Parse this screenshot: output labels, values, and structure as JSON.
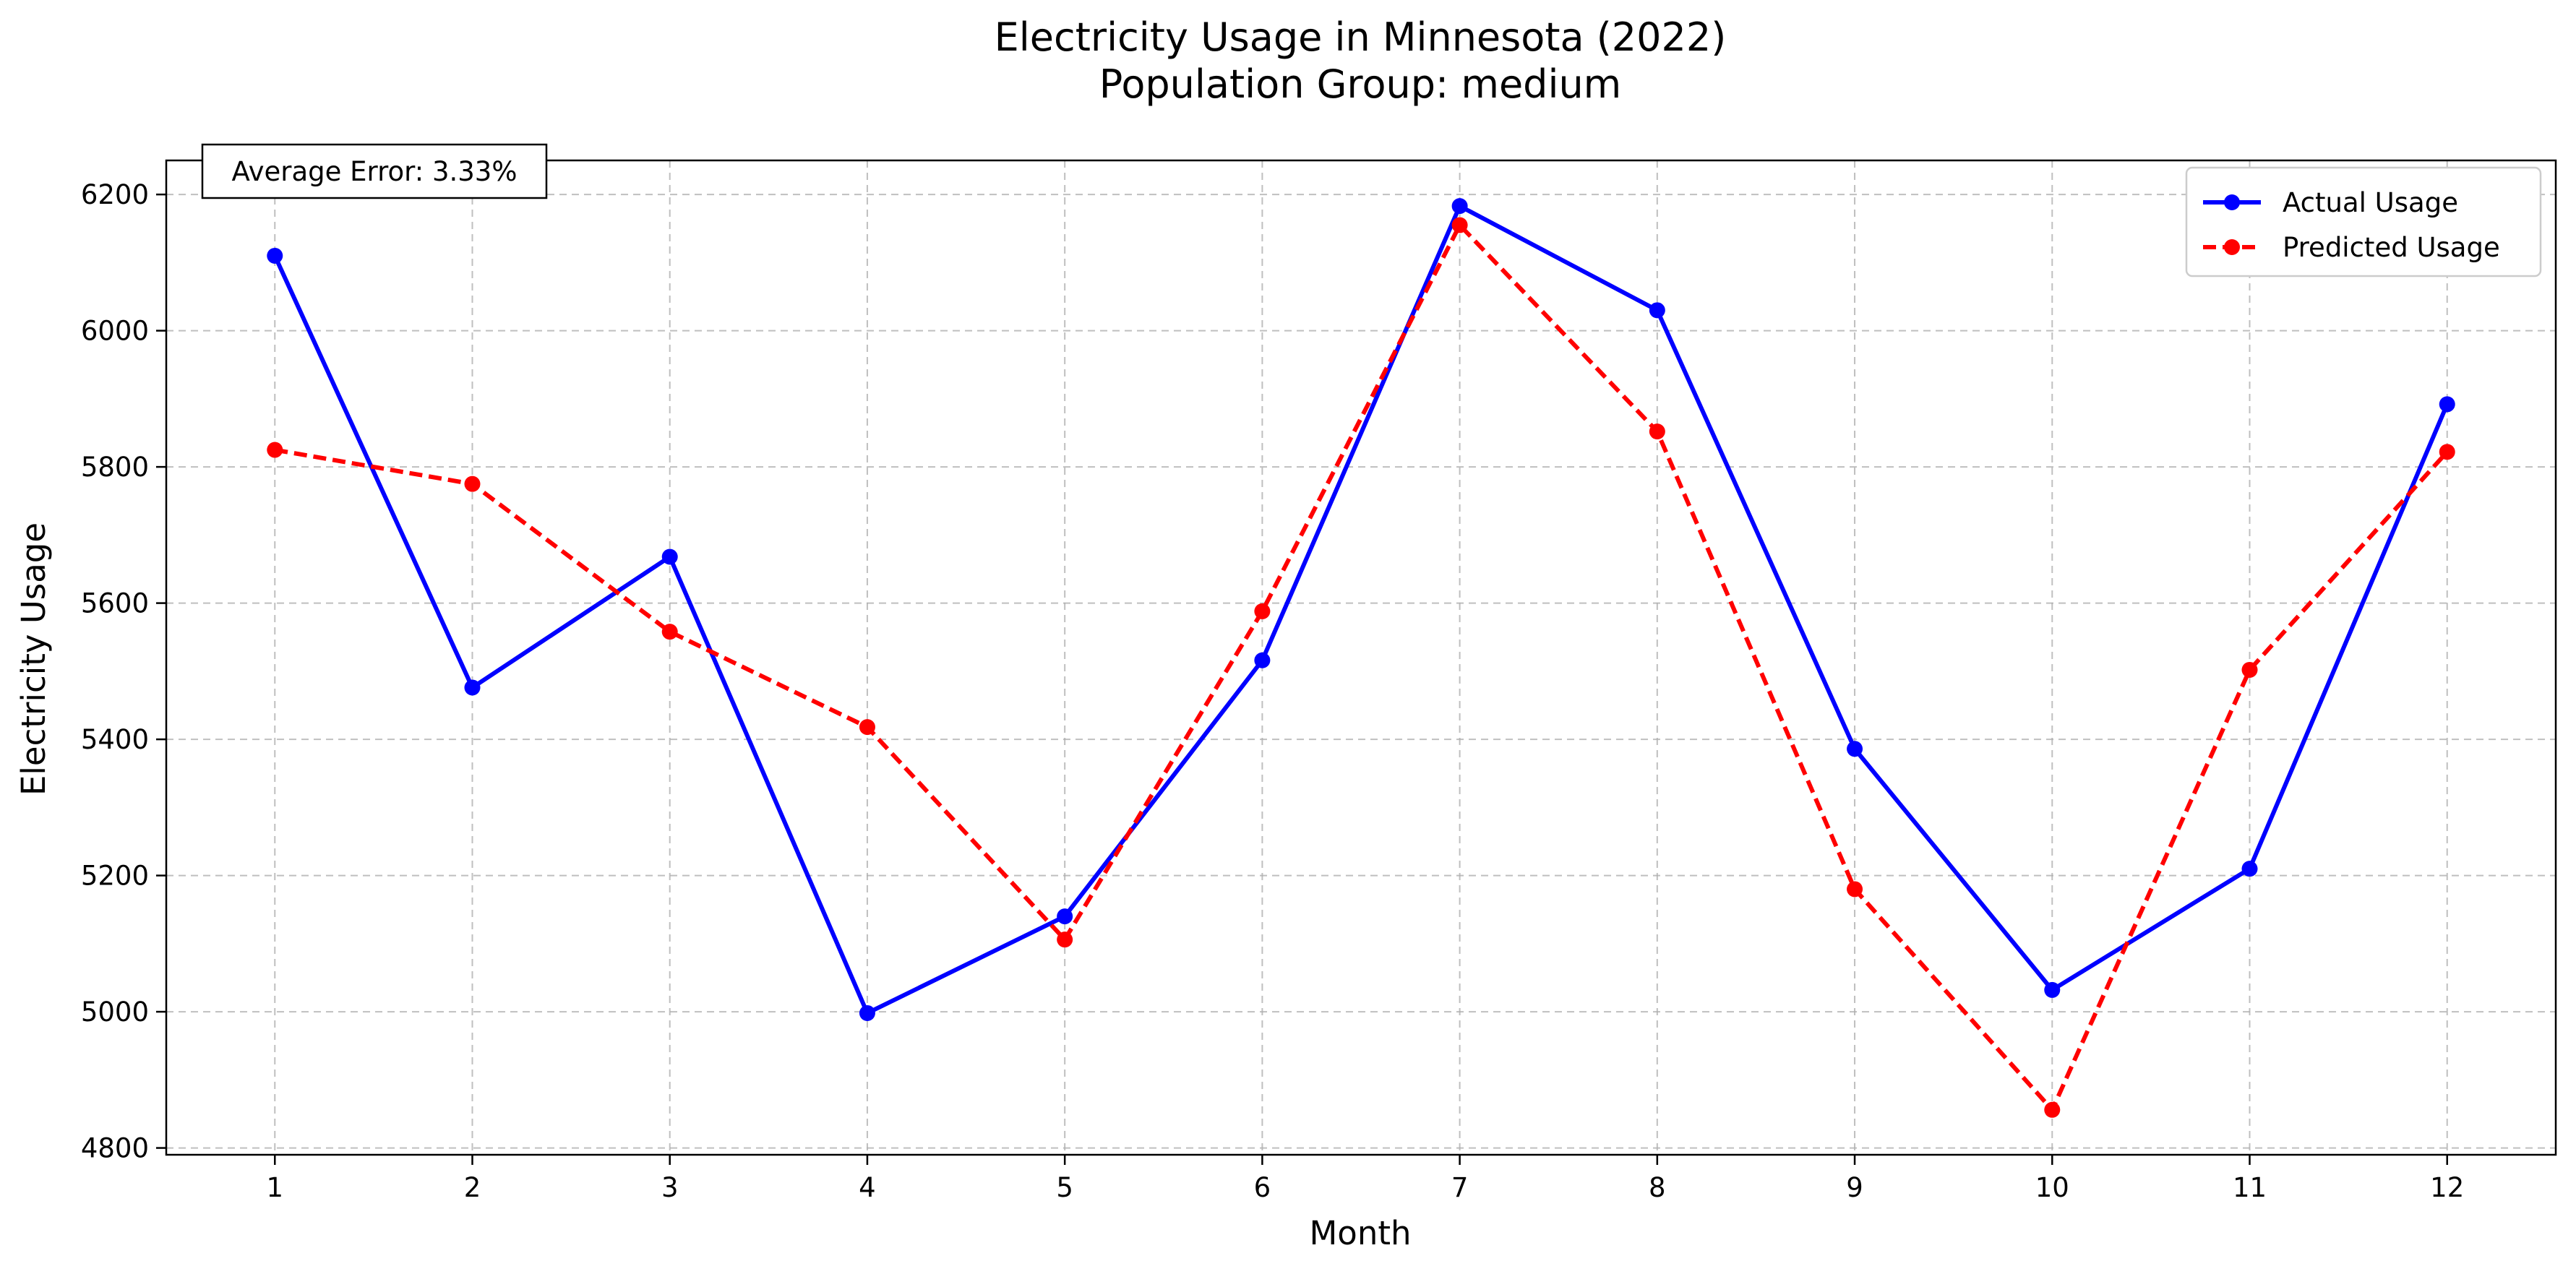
{
  "chart_data": {
    "type": "line",
    "title": "Electricity Usage in Minnesota (2022)",
    "subtitle": "Population Group: medium",
    "xlabel": "Month",
    "ylabel": "Electricity Usage",
    "x": [
      1,
      2,
      3,
      4,
      5,
      6,
      7,
      8,
      9,
      10,
      11,
      12
    ],
    "xlim": [
      0.45,
      12.55
    ],
    "ylim": [
      4790,
      6250
    ],
    "yticks": [
      4800,
      5000,
      5200,
      5400,
      5600,
      5800,
      6000,
      6200
    ],
    "grid": true,
    "legend_position": "top-right",
    "annotation": "Average Error: 3.33%",
    "series": [
      {
        "name": "Actual Usage",
        "color": "#0000ff",
        "line_style": "solid",
        "marker": "circle",
        "values": [
          6110,
          5476,
          5668,
          4998,
          5140,
          5516,
          6183,
          6030,
          5386,
          5032,
          5210,
          5892
        ]
      },
      {
        "name": "Predicted Usage",
        "color": "#ff0000",
        "line_style": "dashed",
        "marker": "circle",
        "values": [
          5825,
          5775,
          5558,
          5418,
          5106,
          5588,
          6155,
          5852,
          5180,
          4856,
          5502,
          5822
        ]
      }
    ]
  }
}
